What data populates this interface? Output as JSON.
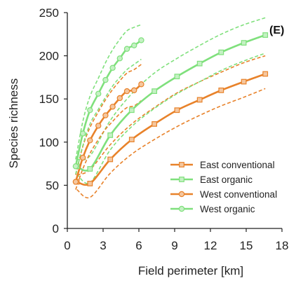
{
  "chart_data": {
    "type": "line",
    "panel_label": "(E)",
    "xlabel": "Field perimeter [km]",
    "ylabel": "Species richness",
    "xlim": [
      0,
      18
    ],
    "ylim": [
      0,
      250
    ],
    "xticks": [
      0,
      3,
      6,
      9,
      12,
      15,
      18
    ],
    "yticks": [
      0,
      50,
      100,
      150,
      200,
      250
    ],
    "grid": false,
    "legend_position": "bottom-right",
    "series": [
      {
        "name": "East conventional",
        "color": "#e8822a",
        "marker": "square",
        "x": [
          0.8,
          1.9,
          3.6,
          5.4,
          7.3,
          9.2,
          11.1,
          12.9,
          14.8,
          16.6
        ],
        "y": [
          54,
          52,
          80,
          103,
          121,
          137,
          149,
          160,
          170,
          179
        ],
        "ci_upper": [
          62,
          68,
          97,
          121,
          140,
          157,
          170,
          181,
          192,
          200
        ],
        "ci_lower": [
          45,
          36,
          64,
          86,
          103,
          118,
          131,
          142,
          152,
          162
        ]
      },
      {
        "name": "East organic",
        "color": "#7fe07c",
        "marker": "square",
        "x": [
          0.8,
          1.9,
          3.6,
          5.4,
          7.3,
          9.2,
          11.1,
          12.9,
          14.8,
          16.6
        ],
        "y": [
          72,
          69,
          108,
          137,
          159,
          176,
          191,
          204,
          215,
          224
        ],
        "ci_upper": [
          80,
          84,
          125,
          156,
          180,
          197,
          212,
          225,
          236,
          244
        ],
        "ci_lower": [
          63,
          53,
          91,
          118,
          139,
          156,
          170,
          183,
          194,
          203
        ]
      },
      {
        "name": "West conventional",
        "color": "#e8822a",
        "marker": "circle",
        "x": [
          0.7,
          1.3,
          1.9,
          2.6,
          3.2,
          3.8,
          4.4,
          5.0,
          5.6,
          6.2
        ],
        "y": [
          54,
          82,
          102,
          119,
          131,
          141,
          151,
          159,
          160,
          167
        ],
        "ci_upper": [
          62,
          95,
          117,
          135,
          149,
          161,
          171,
          180,
          184,
          190
        ],
        "ci_lower": [
          45,
          69,
          87,
          103,
          115,
          124,
          133,
          140,
          142,
          148
        ]
      },
      {
        "name": "West organic",
        "color": "#7fe07c",
        "marker": "circle",
        "x": [
          0.7,
          1.3,
          1.9,
          2.6,
          3.2,
          3.8,
          4.4,
          5.0,
          5.6,
          6.2
        ],
        "y": [
          72,
          110,
          137,
          156,
          172,
          186,
          197,
          208,
          212,
          218
        ],
        "ci_upper": [
          80,
          124,
          153,
          174,
          192,
          207,
          219,
          229,
          233,
          236
        ],
        "ci_lower": [
          63,
          96,
          121,
          138,
          152,
          165,
          175,
          184,
          190,
          196
        ]
      }
    ]
  }
}
